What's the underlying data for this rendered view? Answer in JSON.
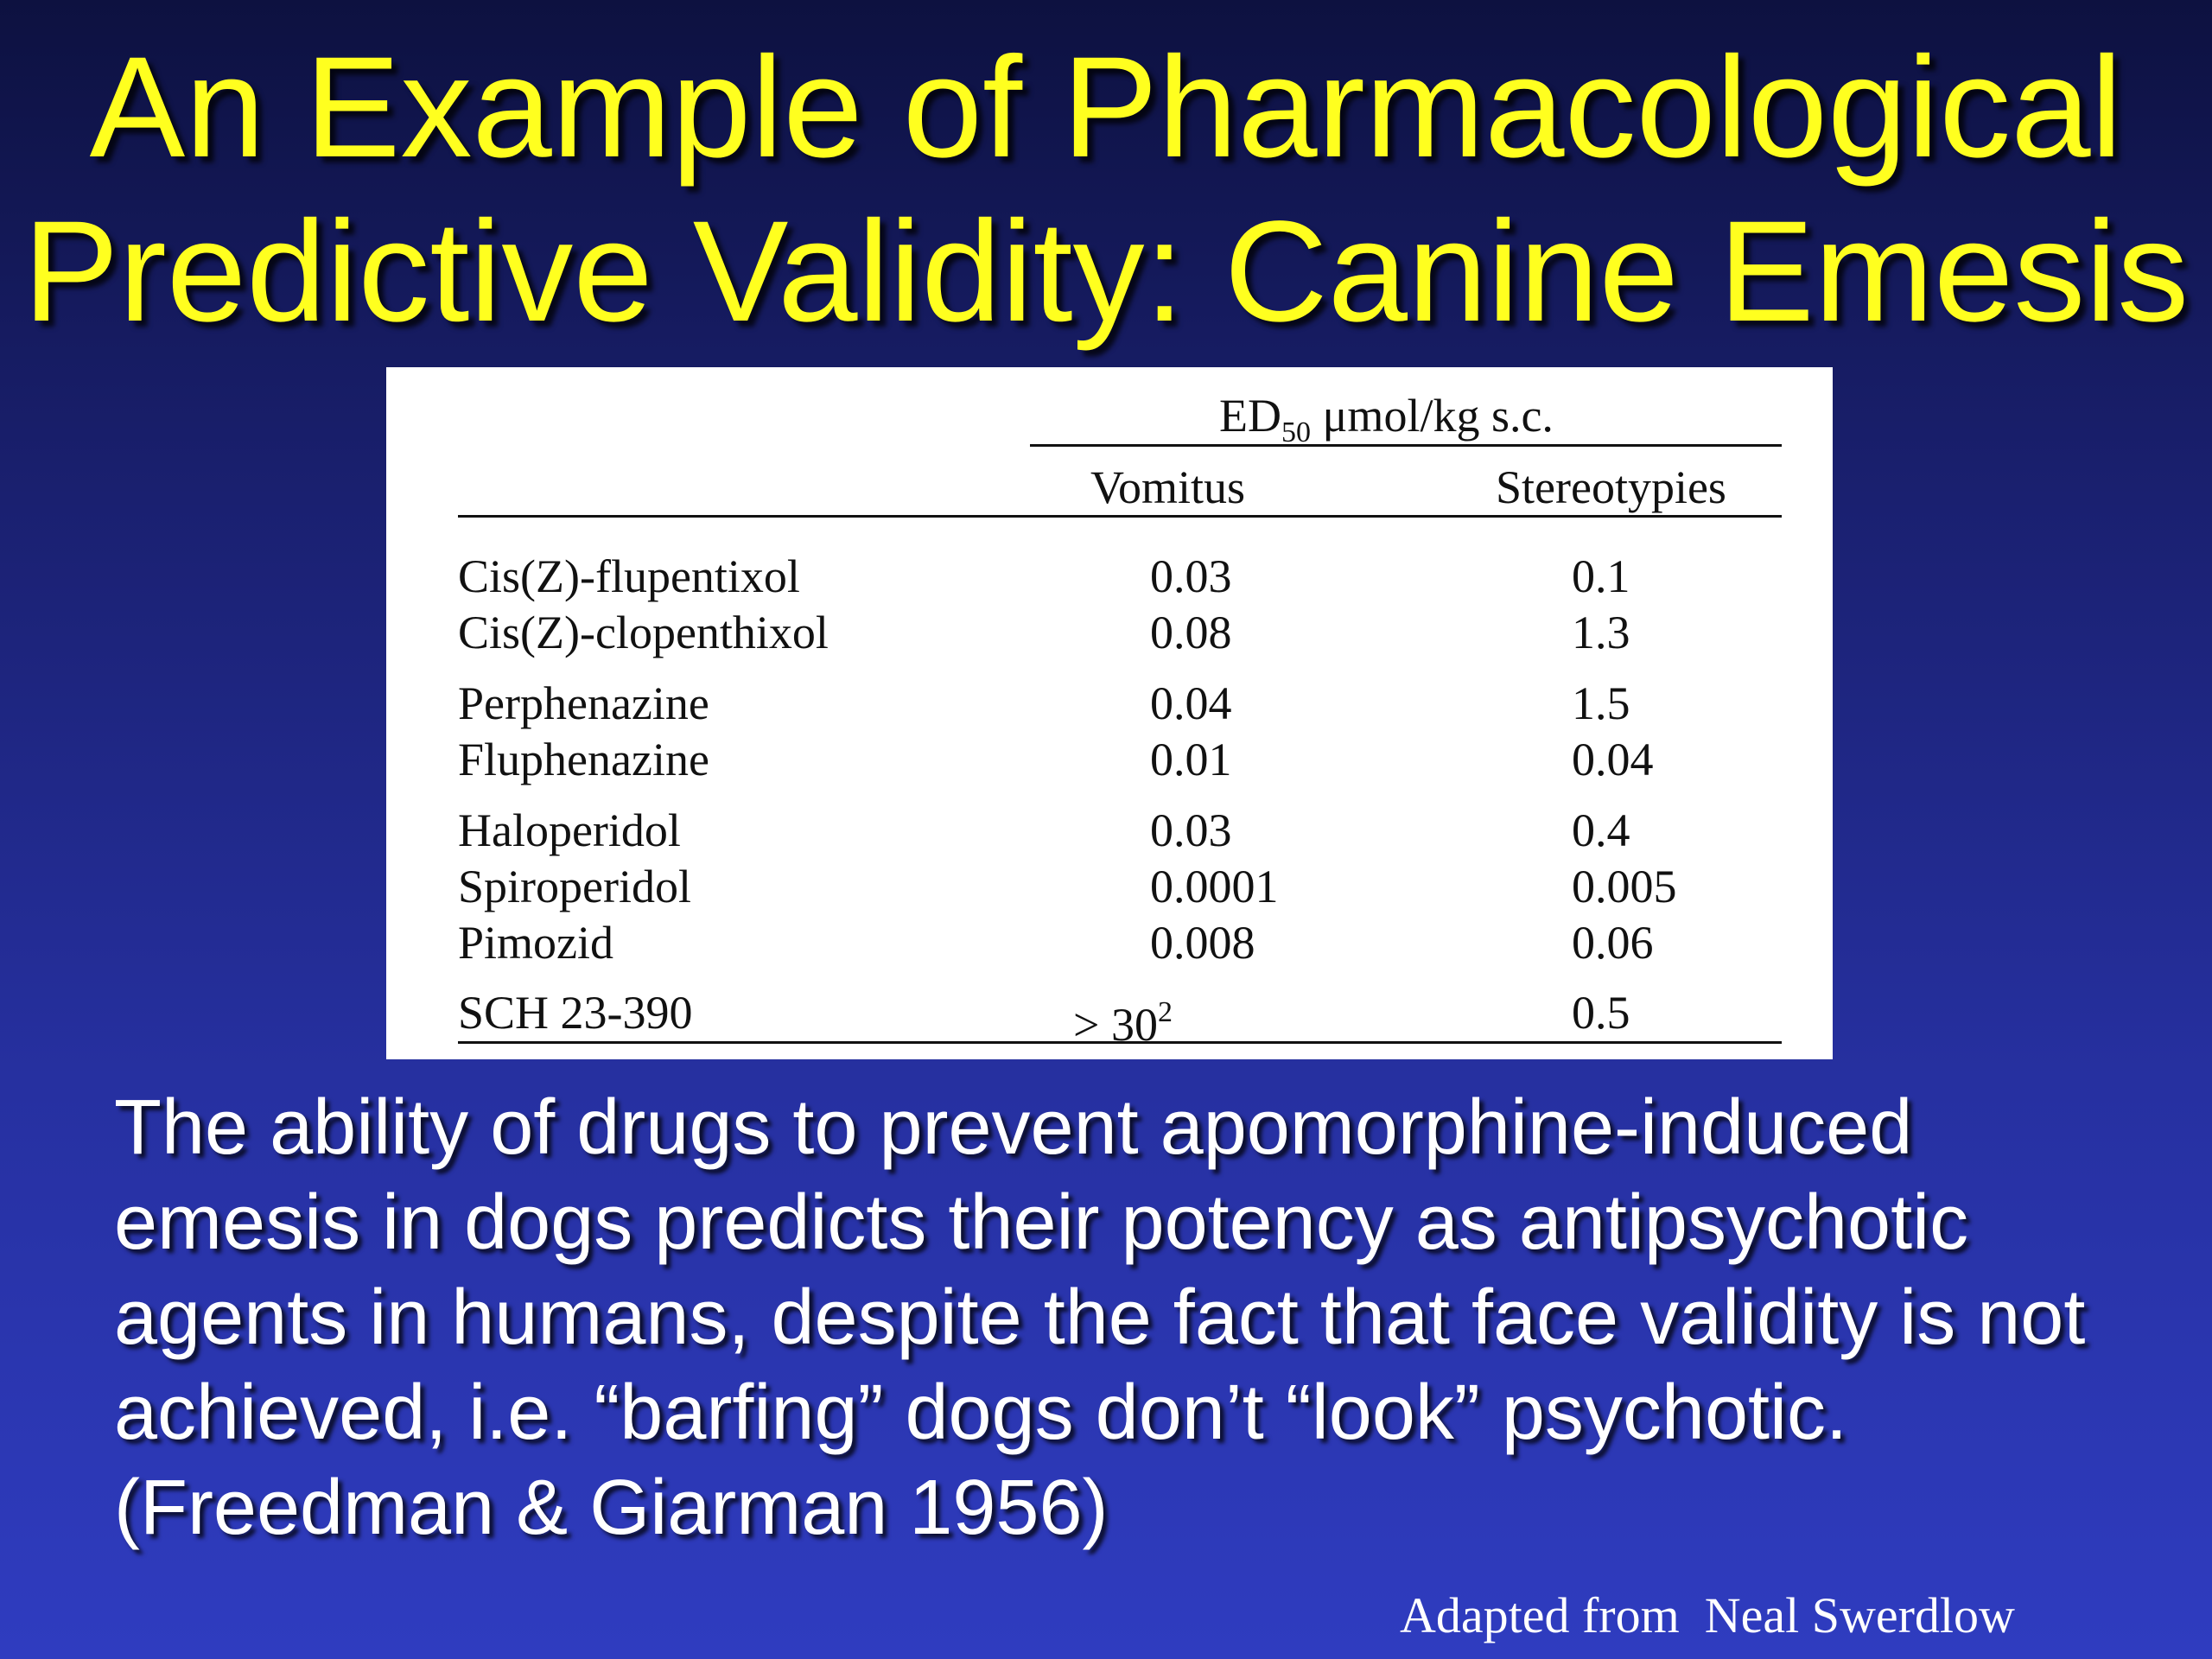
{
  "slide": {
    "title_lines": [
      "An Example of Pharmacological",
      "Predictive Validity: Canine Emesis"
    ],
    "body_lines": [
      "The ability of drugs to prevent apomorphine-induced",
      "emesis in dogs predicts their potency as antipsychotic",
      "agents in humans, despite the fact that face validity is not",
      "achieved, i.e. “barfing” dogs don’t “look” psychotic.",
      "(Freedman & Giarman 1956)"
    ],
    "credit": "Adapted from  Neal Swerdlow"
  },
  "table": {
    "header_group": {
      "prefix": "ED",
      "subscript": "50",
      "suffix": " μmol/kg s.c."
    },
    "columns": [
      "Vomitus",
      "Stereotypies"
    ],
    "rows": [
      {
        "drug": "Cis(Z)-flupentixol",
        "vomitus": "0.03",
        "stereotypies": "0.1"
      },
      {
        "drug": "Cis(Z)-clopenthixol",
        "vomitus": "0.08",
        "stereotypies": "1.3"
      },
      {
        "drug": "Perphenazine",
        "vomitus": "0.04",
        "stereotypies": "1.5"
      },
      {
        "drug": "Fluphenazine",
        "vomitus": "0.01",
        "stereotypies": "0.04"
      },
      {
        "drug": "Haloperidol",
        "vomitus": "0.03",
        "stereotypies": "0.4"
      },
      {
        "drug": "Spiroperidol",
        "vomitus": "0.0001",
        "stereotypies": "0.005"
      },
      {
        "drug": "Pimozid",
        "vomitus": "0.008",
        "stereotypies": "0.06"
      },
      {
        "drug": "SCH 23-390",
        "vomitus": "> 30",
        "vomitus_superscript": "2",
        "stereotypies": "0.5"
      }
    ]
  },
  "colors": {
    "title": "#ffff1f",
    "body_text": "#ffffff",
    "background_top": "#0d1140",
    "background_bottom": "#2f3cc0",
    "table_background": "#ffffff"
  }
}
